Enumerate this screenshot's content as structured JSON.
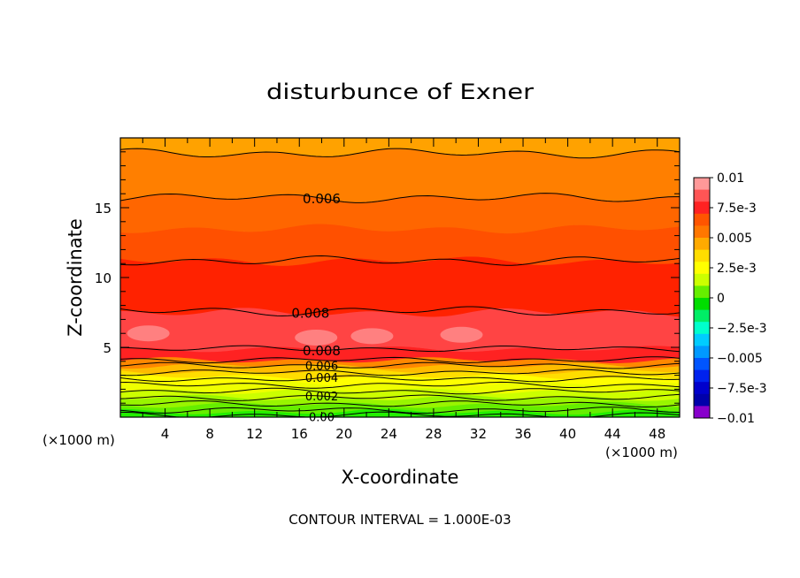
{
  "chart_data": {
    "type": "contour",
    "title": "disturbunce of Exner",
    "xlabel": "X-coordinate",
    "ylabel": "Z-coordinate",
    "x_unit": "(×1000 m)",
    "y_unit": "(×1000 m)",
    "xlim": [
      0,
      50
    ],
    "ylim": [
      0,
      20
    ],
    "x_ticks": [
      4,
      8,
      12,
      16,
      20,
      24,
      28,
      32,
      36,
      40,
      44,
      48
    ],
    "y_ticks": [
      5,
      10,
      15
    ],
    "footer": "CONTOUR INTERVAL = 1.000E-03",
    "colorbar": {
      "labels": [
        "0.01",
        "7.5e-3",
        "0.005",
        "2.5e-3",
        "0",
        "-2.5e-3",
        "-0.005",
        "-7.5e-3",
        "-0.01"
      ],
      "min": -0.01,
      "max": 0.01,
      "levels": [
        {
          "value": 0.0095,
          "color": "#ff9999"
        },
        {
          "value": 0.0085,
          "color": "#ff5555"
        },
        {
          "value": 0.0075,
          "color": "#ff2222"
        },
        {
          "value": 0.0065,
          "color": "#ff5500"
        },
        {
          "value": 0.0055,
          "color": "#ff7700"
        },
        {
          "value": 0.0045,
          "color": "#ffaa00"
        },
        {
          "value": 0.0035,
          "color": "#ffdd00"
        },
        {
          "value": 0.0025,
          "color": "#ffff00"
        },
        {
          "value": 0.0015,
          "color": "#ccff00"
        },
        {
          "value": 0.0005,
          "color": "#66ee00"
        },
        {
          "value": -0.0005,
          "color": "#00dd00"
        },
        {
          "value": -0.0015,
          "color": "#00ee66"
        },
        {
          "value": -0.0025,
          "color": "#00ffcc"
        },
        {
          "value": -0.0035,
          "color": "#00ccff"
        },
        {
          "value": -0.0045,
          "color": "#0099ff"
        },
        {
          "value": -0.0055,
          "color": "#0055ff"
        },
        {
          "value": -0.0065,
          "color": "#0022ee"
        },
        {
          "value": -0.0075,
          "color": "#0000cc"
        },
        {
          "value": -0.0085,
          "color": "#0000aa"
        },
        {
          "value": -0.0095,
          "color": "#8800cc"
        }
      ]
    },
    "bands": [
      {
        "z0": 0.0,
        "z1": 0.4,
        "value": 0.0003,
        "color": "#22ee00"
      },
      {
        "z0": 0.4,
        "z1": 0.9,
        "value": 0.0008,
        "color": "#66ee00"
      },
      {
        "z0": 0.9,
        "z1": 1.4,
        "value": 0.0013,
        "color": "#99f500"
      },
      {
        "z0": 1.4,
        "z1": 1.9,
        "value": 0.0018,
        "color": "#ccff00"
      },
      {
        "z0": 1.9,
        "z1": 2.4,
        "value": 0.0024,
        "color": "#eeff00"
      },
      {
        "z0": 2.4,
        "z1": 2.9,
        "value": 0.0029,
        "color": "#ffff00"
      },
      {
        "z0": 2.9,
        "z1": 3.3,
        "value": 0.0034,
        "color": "#ffdd00"
      },
      {
        "z0": 3.3,
        "z1": 3.7,
        "value": 0.004,
        "color": "#ffbb00"
      },
      {
        "z0": 3.7,
        "z1": 4.1,
        "value": 0.0055,
        "color": "#ff8800"
      },
      {
        "z0": 4.1,
        "z1": 4.9,
        "value": 0.0071,
        "color": "#ff2222"
      },
      {
        "z0": 4.9,
        "z1": 7.5,
        "value": 0.0085,
        "color": "#ff4444"
      },
      {
        "z0": 7.5,
        "z1": 11.2,
        "value": 0.0075,
        "color": "#ff2200"
      },
      {
        "z0": 11.2,
        "z1": 13.5,
        "value": 0.0066,
        "color": "#ff5000"
      },
      {
        "z0": 13.5,
        "z1": 15.7,
        "value": 0.0062,
        "color": "#ff6600"
      },
      {
        "z0": 15.7,
        "z1": 18.9,
        "value": 0.0055,
        "color": "#ff7f00"
      },
      {
        "z0": 18.9,
        "z1": 20.0,
        "value": 0.0048,
        "color": "#ffa200"
      }
    ],
    "contours": [
      {
        "level": "0.00",
        "z": 0.15
      },
      {
        "z": 0.5
      },
      {
        "z": 0.95
      },
      {
        "level": "0.002",
        "z": 1.4
      },
      {
        "z": 1.85
      },
      {
        "z": 2.3
      },
      {
        "level": "0.004",
        "z": 2.75
      },
      {
        "z": 3.2
      },
      {
        "level": "0.006",
        "z": 3.7
      },
      {
        "z": 4.1
      },
      {
        "level": "0.008",
        "z": 4.9
      },
      {
        "level": "0.008",
        "z": 7.6
      },
      {
        "z": 11.2
      },
      {
        "level": "0.006",
        "z": 15.7
      },
      {
        "z": 18.9
      }
    ],
    "maxima": [
      {
        "x": 2.5,
        "z": 6.0
      },
      {
        "x": 17.5,
        "z": 5.7
      },
      {
        "x": 22.5,
        "z": 5.8
      },
      {
        "x": 30.5,
        "z": 5.9
      }
    ]
  }
}
